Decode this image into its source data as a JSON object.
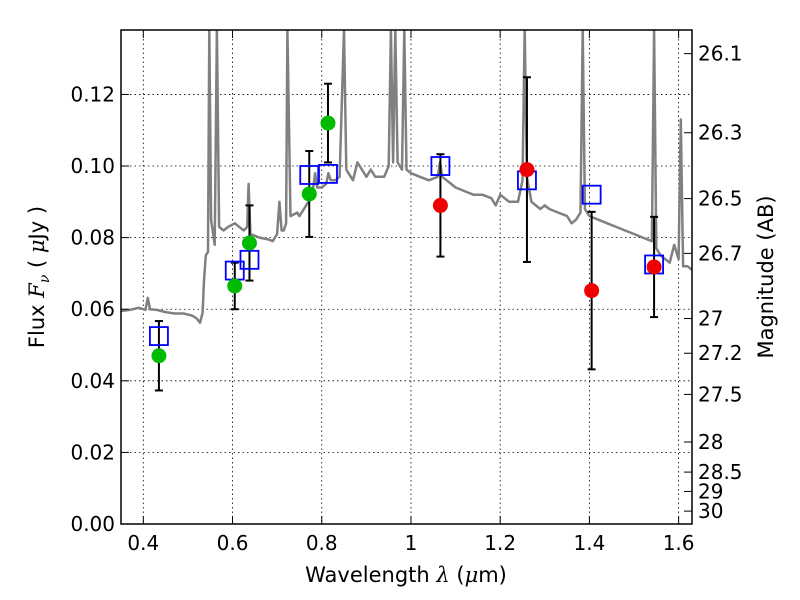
{
  "chart_data": {
    "type": "scatter",
    "title": "",
    "xlabel": "Wavelength  λ (μm)",
    "ylabel": "Flux  Fν  ( μJy )",
    "ylabel_right": "Magnitude (AB)",
    "xlim": [
      0.35,
      1.63
    ],
    "ylim": [
      0.0,
      0.138
    ],
    "grid": true,
    "x_ticks": [
      0.4,
      0.6,
      0.8,
      1.0,
      1.2,
      1.4,
      1.6
    ],
    "x_tick_labels": [
      "0.4",
      "0.6",
      "0.8",
      "1",
      "1.2",
      "1.4",
      "1.6"
    ],
    "y_ticks": [
      0.0,
      0.02,
      0.04,
      0.06,
      0.08,
      0.1,
      0.12
    ],
    "y_tick_labels": [
      "0.00",
      "0.02",
      "0.04",
      "0.06",
      "0.08",
      "0.10",
      "0.12"
    ],
    "right_ticks": [
      {
        "label": "26.1",
        "flux": 0.1314
      },
      {
        "label": "26.3",
        "flux": 0.1093
      },
      {
        "label": "26.5",
        "flux": 0.0909
      },
      {
        "label": "26.7",
        "flux": 0.0756
      },
      {
        "label": "27",
        "flux": 0.0574
      },
      {
        "label": "27.2",
        "flux": 0.0477
      },
      {
        "label": "27.5",
        "flux": 0.0362
      },
      {
        "label": "28",
        "flux": 0.0229
      },
      {
        "label": "28.5",
        "flux": 0.0145
      },
      {
        "label": "29",
        "flux": 0.0091
      },
      {
        "label": "30",
        "flux": 0.0036
      }
    ],
    "series": [
      {
        "kind": "model-sed-line",
        "color": "#808080",
        "points": [
          [
            0.35,
            0.0595
          ],
          [
            0.37,
            0.0598
          ],
          [
            0.39,
            0.0604
          ],
          [
            0.405,
            0.0598
          ],
          [
            0.41,
            0.0632
          ],
          [
            0.415,
            0.06
          ],
          [
            0.43,
            0.0598
          ],
          [
            0.45,
            0.0592
          ],
          [
            0.47,
            0.0588
          ],
          [
            0.49,
            0.0588
          ],
          [
            0.51,
            0.0582
          ],
          [
            0.52,
            0.0574
          ],
          [
            0.527,
            0.0562
          ],
          [
            0.533,
            0.059
          ],
          [
            0.536,
            0.068
          ],
          [
            0.54,
            0.075
          ],
          [
            0.545,
            0.076
          ],
          [
            0.548,
            0.138
          ],
          [
            0.552,
            0.085
          ],
          [
            0.56,
            0.078
          ],
          [
            0.565,
            0.138
          ],
          [
            0.57,
            0.083
          ],
          [
            0.58,
            0.082
          ],
          [
            0.59,
            0.083
          ],
          [
            0.605,
            0.084
          ],
          [
            0.625,
            0.082
          ],
          [
            0.633,
            0.083
          ],
          [
            0.636,
            0.095
          ],
          [
            0.64,
            0.081
          ],
          [
            0.66,
            0.08
          ],
          [
            0.68,
            0.0795
          ],
          [
            0.69,
            0.079
          ],
          [
            0.695,
            0.08
          ],
          [
            0.7,
            0.081
          ],
          [
            0.705,
            0.09
          ],
          [
            0.71,
            0.082
          ],
          [
            0.715,
            0.082
          ],
          [
            0.72,
            0.084
          ],
          [
            0.723,
            0.138
          ],
          [
            0.73,
            0.086
          ],
          [
            0.745,
            0.087
          ],
          [
            0.75,
            0.086
          ],
          [
            0.76,
            0.088
          ],
          [
            0.77,
            0.09
          ],
          [
            0.78,
            0.093
          ],
          [
            0.785,
            0.098
          ],
          [
            0.79,
            0.094
          ],
          [
            0.8,
            0.094
          ],
          [
            0.81,
            0.095
          ],
          [
            0.815,
            0.098
          ],
          [
            0.82,
            0.096
          ],
          [
            0.83,
            0.096
          ],
          [
            0.84,
            0.097
          ],
          [
            0.85,
            0.138
          ],
          [
            0.855,
            0.099
          ],
          [
            0.86,
            0.098
          ],
          [
            0.87,
            0.096
          ],
          [
            0.88,
            0.101
          ],
          [
            0.89,
            0.099
          ],
          [
            0.9,
            0.097
          ],
          [
            0.91,
            0.099
          ],
          [
            0.92,
            0.097
          ],
          [
            0.94,
            0.097
          ],
          [
            0.95,
            0.1
          ],
          [
            0.955,
            0.138
          ],
          [
            0.96,
            0.101
          ],
          [
            0.965,
            0.138
          ],
          [
            0.97,
            0.101
          ],
          [
            0.98,
            0.099
          ],
          [
            0.985,
            0.138
          ],
          [
            0.99,
            0.099
          ],
          [
            1.0,
            0.098
          ],
          [
            1.02,
            0.097
          ],
          [
            1.04,
            0.096
          ],
          [
            1.06,
            0.097
          ],
          [
            1.065,
            0.101
          ],
          [
            1.07,
            0.097
          ],
          [
            1.08,
            0.096
          ],
          [
            1.09,
            0.095
          ],
          [
            1.1,
            0.094
          ],
          [
            1.12,
            0.093
          ],
          [
            1.14,
            0.092
          ],
          [
            1.16,
            0.092
          ],
          [
            1.18,
            0.091
          ],
          [
            1.19,
            0.089
          ],
          [
            1.2,
            0.092
          ],
          [
            1.22,
            0.09
          ],
          [
            1.24,
            0.09
          ],
          [
            1.25,
            0.096
          ],
          [
            1.255,
            0.138
          ],
          [
            1.26,
            0.097
          ],
          [
            1.27,
            0.09
          ],
          [
            1.28,
            0.089
          ],
          [
            1.29,
            0.088
          ],
          [
            1.3,
            0.089
          ],
          [
            1.31,
            0.088
          ],
          [
            1.33,
            0.087
          ],
          [
            1.35,
            0.086
          ],
          [
            1.36,
            0.084
          ],
          [
            1.37,
            0.085
          ],
          [
            1.38,
            0.087
          ],
          [
            1.385,
            0.138
          ],
          [
            1.39,
            0.088
          ],
          [
            1.4,
            0.086
          ],
          [
            1.42,
            0.085
          ],
          [
            1.44,
            0.084
          ],
          [
            1.46,
            0.083
          ],
          [
            1.48,
            0.082
          ],
          [
            1.5,
            0.081
          ],
          [
            1.52,
            0.08
          ],
          [
            1.54,
            0.079
          ],
          [
            1.545,
            0.138
          ],
          [
            1.55,
            0.077
          ],
          [
            1.56,
            0.075
          ],
          [
            1.57,
            0.074
          ],
          [
            1.58,
            0.073
          ],
          [
            1.59,
            0.078
          ],
          [
            1.6,
            0.074
          ],
          [
            1.605,
            0.113
          ],
          [
            1.61,
            0.072
          ],
          [
            1.62,
            0.072
          ],
          [
            1.63,
            0.071
          ]
        ]
      },
      {
        "kind": "model-squares",
        "color": "#0000ff",
        "points": [
          {
            "x": 0.435,
            "y": 0.0525
          },
          {
            "x": 0.605,
            "y": 0.0708
          },
          {
            "x": 0.638,
            "y": 0.0738
          },
          {
            "x": 0.772,
            "y": 0.0975
          },
          {
            "x": 0.814,
            "y": 0.0978
          },
          {
            "x": 1.066,
            "y": 0.1
          },
          {
            "x": 1.26,
            "y": 0.096
          },
          {
            "x": 1.405,
            "y": 0.092
          },
          {
            "x": 1.545,
            "y": 0.0725
          }
        ]
      },
      {
        "kind": "observed-points",
        "color": "#00bb00",
        "points": [
          {
            "x": 0.435,
            "y": 0.047,
            "err": 0.0097
          },
          {
            "x": 0.605,
            "y": 0.0665,
            "err": 0.0065
          },
          {
            "x": 0.638,
            "y": 0.0785,
            "err": 0.0105
          },
          {
            "x": 0.772,
            "y": 0.0922,
            "err": 0.012
          },
          {
            "x": 0.814,
            "y": 0.112,
            "err": 0.011
          }
        ]
      },
      {
        "kind": "observed-points",
        "color": "#ee0000",
        "points": [
          {
            "x": 1.066,
            "y": 0.089,
            "err": 0.0143
          },
          {
            "x": 1.26,
            "y": 0.099,
            "err": 0.0258
          },
          {
            "x": 1.405,
            "y": 0.0652,
            "err": 0.022
          },
          {
            "x": 1.545,
            "y": 0.0718,
            "err": 0.014
          }
        ]
      }
    ]
  }
}
